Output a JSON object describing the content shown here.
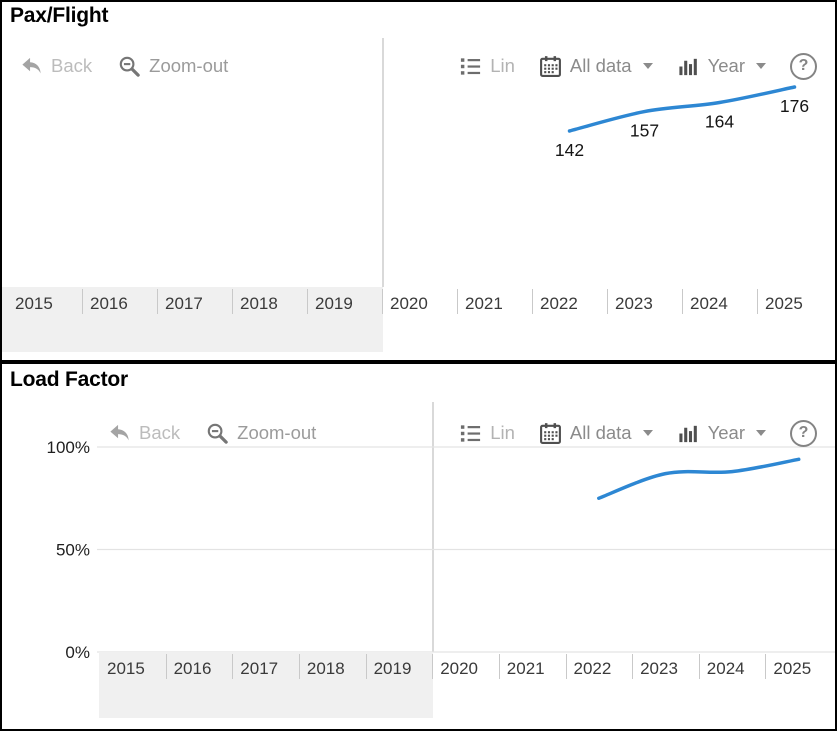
{
  "panels": [
    {
      "title": "Pax/Flight",
      "toolbar": {
        "back": "Back",
        "zoom_out": "Zoom-out",
        "lin": "Lin",
        "all_data": "All data",
        "year": "Year",
        "help": "?"
      }
    },
    {
      "title": "Load Factor",
      "toolbar": {
        "back": "Back",
        "zoom_out": "Zoom-out",
        "lin": "Lin",
        "all_data": "All data",
        "year": "Year",
        "help": "?"
      }
    }
  ],
  "chart_data": [
    {
      "type": "line",
      "title": "Pax/Flight",
      "x": [
        2022,
        2023,
        2024,
        2025
      ],
      "values": [
        142,
        157,
        164,
        176
      ],
      "data_labels": [
        "142",
        "157",
        "164",
        "176"
      ],
      "x_axis_years": [
        "2015",
        "2016",
        "2017",
        "2018",
        "2019",
        "2020",
        "2021",
        "2022",
        "2023",
        "2024",
        "2025"
      ],
      "shaded_years": [
        "2015",
        "2016",
        "2017",
        "2018",
        "2019"
      ],
      "x_range_shown": [
        2015,
        2025
      ],
      "line_color": "#2d87d3",
      "shaded_band_color": "#f0f0f0",
      "grid": false,
      "legend": "none"
    },
    {
      "type": "line",
      "title": "Load Factor",
      "x": [
        2022,
        2023,
        2024,
        2025
      ],
      "values": [
        75,
        87,
        88,
        94
      ],
      "unit": "%",
      "ylim": [
        0,
        100
      ],
      "y_axis": {
        "ticks": [
          {
            "value": 0,
            "label": "0%"
          },
          {
            "value": 50,
            "label": "50%"
          },
          {
            "value": 100,
            "label": "100%"
          }
        ]
      },
      "x_axis_years": [
        "2015",
        "2016",
        "2017",
        "2018",
        "2019",
        "2020",
        "2021",
        "2022",
        "2023",
        "2024",
        "2025"
      ],
      "shaded_years": [
        "2015",
        "2016",
        "2017",
        "2018",
        "2019"
      ],
      "x_range_shown": [
        2015,
        2025
      ],
      "line_color": "#2d87d3",
      "shaded_band_color": "#f0f0f0",
      "grid": true,
      "legend": "none"
    }
  ]
}
